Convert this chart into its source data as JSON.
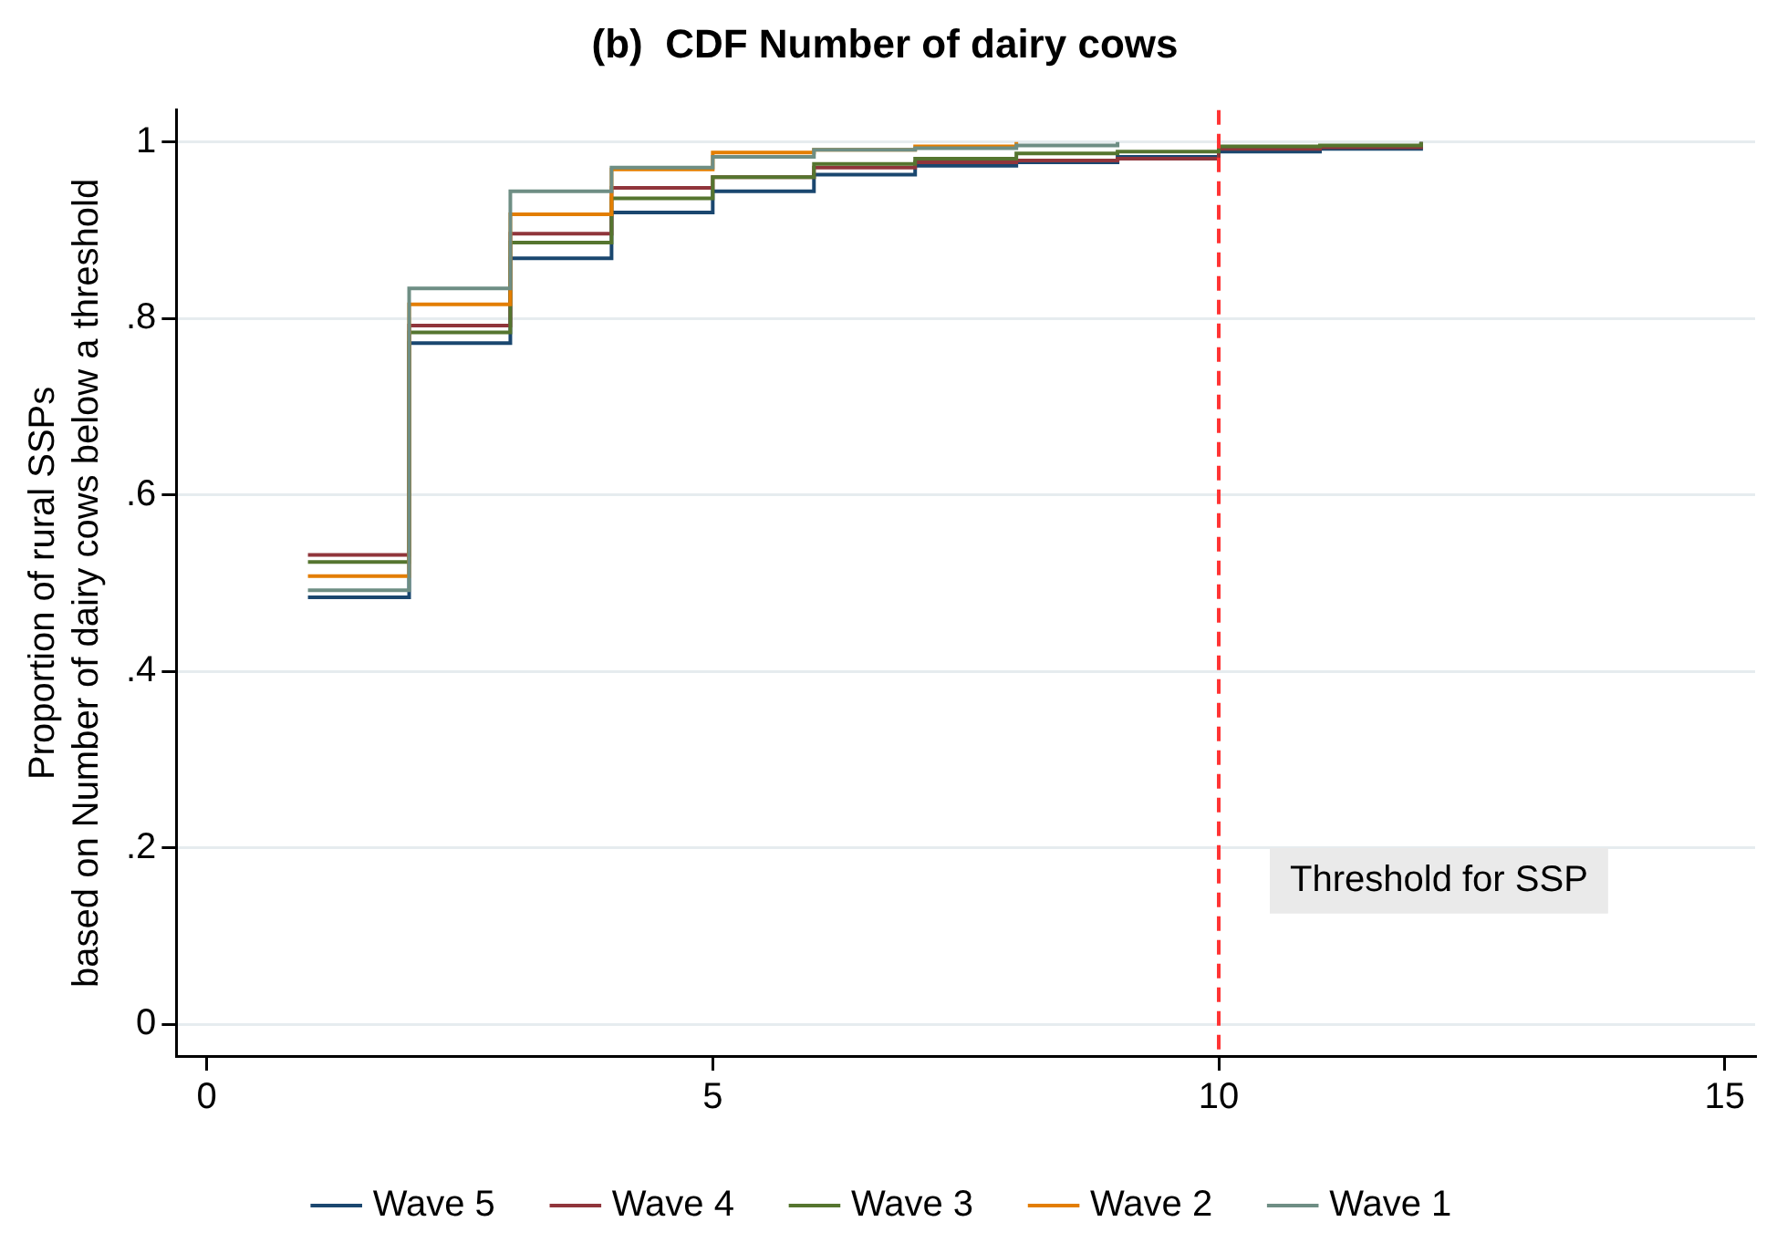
{
  "chart_data": {
    "type": "step",
    "title": "(b)  CDF Number of dairy cows",
    "ylabel": "Proportion of rural SSPs\nbased on Number of dairy cows below a threshold",
    "series": [
      {
        "name": "Wave 5",
        "color": "#1a476f",
        "x": [
          1,
          2,
          3,
          4,
          5,
          6,
          7,
          8,
          9,
          10,
          11,
          12
        ],
        "values": [
          0.484,
          0.772,
          0.868,
          0.92,
          0.944,
          0.963,
          0.973,
          0.977,
          0.983,
          0.989,
          0.992,
          1
        ]
      },
      {
        "name": "Wave 4",
        "color": "#90353b",
        "x": [
          1,
          2,
          3,
          4,
          5,
          6,
          7,
          8,
          9,
          10,
          11,
          12
        ],
        "values": [
          0.532,
          0.792,
          0.896,
          0.948,
          0.96,
          0.971,
          0.977,
          0.979,
          0.981,
          0.992,
          0.994,
          1
        ]
      },
      {
        "name": "Wave 3",
        "color": "#55752f",
        "x": [
          1,
          2,
          3,
          4,
          5,
          6,
          7,
          8,
          9,
          10,
          11,
          12
        ],
        "values": [
          0.524,
          0.784,
          0.886,
          0.936,
          0.96,
          0.975,
          0.981,
          0.987,
          0.989,
          0.995,
          0.996,
          1
        ]
      },
      {
        "name": "Wave 2",
        "color": "#e37e00",
        "x": [
          1,
          2,
          3,
          4,
          5,
          6,
          7,
          8
        ],
        "values": [
          0.508,
          0.816,
          0.918,
          0.969,
          0.988,
          0.991,
          0.995,
          1
        ]
      },
      {
        "name": "Wave 1",
        "color": "#6e8e84",
        "x": [
          1,
          2,
          3,
          4,
          5,
          6,
          7,
          8,
          9
        ],
        "values": [
          0.492,
          0.834,
          0.944,
          0.971,
          0.983,
          0.991,
          0.993,
          0.996,
          1
        ]
      }
    ],
    "xlim": [
      -0.3,
      15.3
    ],
    "xticks": [
      0,
      5,
      10,
      15
    ],
    "ylim": [
      -0.036,
      1.036
    ],
    "yticks": [
      {
        "value": 0,
        "label": "0"
      },
      {
        "value": 0.2,
        "label": ".2"
      },
      {
        "value": 0.4,
        "label": ".4"
      },
      {
        "value": 0.6,
        "label": ".6"
      },
      {
        "value": 0.8,
        "label": ".8"
      },
      {
        "value": 1,
        "label": "1"
      }
    ],
    "ref_lines": [
      {
        "axis": "x",
        "value": 10,
        "label": "Threshold for SSP",
        "color": "#ff3333",
        "line_style": "dashed"
      }
    ],
    "grid": "y",
    "legend": "bottom",
    "line_style": "solid",
    "marker": "none"
  }
}
